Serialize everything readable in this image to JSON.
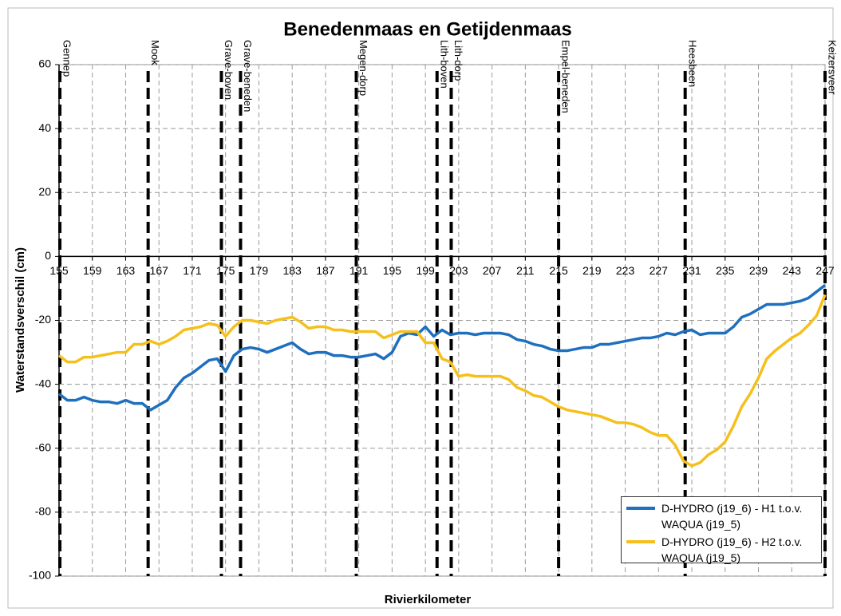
{
  "chart_data": {
    "type": "line",
    "title": "Benedenmaas en Getijdenmaas",
    "x_label": "Rivierkilometer",
    "y_label": "Waterstandsverschil (cm)",
    "xlim": [
      155,
      247
    ],
    "ylim": [
      -100,
      60
    ],
    "xticks": [
      155,
      159,
      163,
      167,
      171,
      175,
      179,
      183,
      187,
      191,
      195,
      199,
      203,
      207,
      211,
      215,
      219,
      223,
      227,
      231,
      235,
      239,
      243,
      247
    ],
    "yticks": [
      -100,
      -80,
      -60,
      -40,
      -20,
      0,
      20,
      40,
      60
    ],
    "grid": true,
    "legend": "bottom-right",
    "locations": [
      {
        "name": "Gennep",
        "x": 155.1
      },
      {
        "name": "Mook",
        "x": 165.7
      },
      {
        "name": "Grave-boven",
        "x": 174.5
      },
      {
        "name": "Grave-beneden",
        "x": 176.8
      },
      {
        "name": "Megen-dorp",
        "x": 190.7
      },
      {
        "name": "Lith-boven",
        "x": 200.4
      },
      {
        "name": "Lith-dorp",
        "x": 202.1
      },
      {
        "name": "Empel-beneden",
        "x": 215.0
      },
      {
        "name": "Heesbeen",
        "x": 230.2
      },
      {
        "name": "Keizersveer",
        "x": 247
      }
    ],
    "x": [
      155,
      156,
      157,
      158,
      159,
      160,
      161,
      162,
      163,
      164,
      165,
      166,
      167,
      168,
      169,
      170,
      171,
      172,
      173,
      174,
      175,
      176,
      177,
      178,
      179,
      180,
      181,
      182,
      183,
      184,
      185,
      186,
      187,
      188,
      189,
      190,
      191,
      192,
      193,
      194,
      195,
      196,
      197,
      198,
      199,
      200,
      201,
      202,
      203,
      204,
      205,
      206,
      207,
      208,
      209,
      210,
      211,
      212,
      213,
      214,
      215,
      216,
      217,
      218,
      219,
      220,
      221,
      222,
      223,
      224,
      225,
      226,
      227,
      228,
      229,
      230,
      231,
      232,
      233,
      234,
      235,
      236,
      237,
      238,
      239,
      240,
      241,
      242,
      243,
      244,
      245,
      246,
      247
    ],
    "series": [
      {
        "name": "D-HYDRO (j19_6) - H1 t.o.v. WAQUA (j19_5)",
        "color": "#1f6fbf",
        "values": [
          -43,
          -45,
          -45,
          -44,
          -45,
          -45.5,
          -45.5,
          -46,
          -45,
          -46,
          -46,
          -48,
          -46.5,
          -45,
          -41,
          -38,
          -36.5,
          -34.5,
          -32.5,
          -32,
          -36,
          -31,
          -29,
          -28.5,
          -29,
          -30,
          -29,
          -28,
          -27,
          -29,
          -30.5,
          -30,
          -30,
          -31,
          -31,
          -31.5,
          -31.5,
          -31,
          -30.5,
          -32,
          -30,
          -25,
          -24,
          -24.5,
          -22,
          -25,
          -23,
          -24.5,
          -24,
          -24,
          -24.5,
          -24,
          -24,
          -24,
          -24.5,
          -26,
          -26.5,
          -27.5,
          -28,
          -29,
          -29.5,
          -29.5,
          -29,
          -28.5,
          -28.5,
          -27.5,
          -27.5,
          -27,
          -26.5,
          -26,
          -25.5,
          -25.5,
          -25,
          -24,
          -24.5,
          -23.5,
          -23,
          -24.5,
          -24,
          -24,
          -24,
          -22,
          -19,
          -18,
          -16.5,
          -15,
          -15,
          -15,
          -14.5,
          -14,
          -13,
          -11,
          -9
        ]
      },
      {
        "name": "D-HYDRO (j19_6) - H2 t.o.v. WAQUA (j19_5)",
        "color": "#f5c01c",
        "values": [
          -31,
          -33,
          -33,
          -31.5,
          -31.5,
          -31,
          -30.5,
          -30,
          -30,
          -27.5,
          -27.5,
          -26.5,
          -27.5,
          -26.5,
          -25,
          -23,
          -22.5,
          -22,
          -21,
          -21.5,
          -25,
          -22,
          -20,
          -20,
          -20.5,
          -21,
          -20,
          -19.5,
          -19,
          -20.5,
          -22.5,
          -22,
          -22,
          -23,
          -23,
          -23.5,
          -23.5,
          -23.5,
          -23.5,
          -25.5,
          -24.5,
          -23.5,
          -23.5,
          -23.5,
          -27,
          -27,
          -32,
          -33,
          -37.5,
          -37,
          -37.5,
          -37.5,
          -37.5,
          -37.5,
          -38.5,
          -41,
          -42,
          -43.5,
          -44,
          -45.5,
          -47,
          -48,
          -48.5,
          -49,
          -49.5,
          -50,
          -51,
          -52,
          -52,
          -52.5,
          -53.5,
          -55,
          -56,
          -56,
          -59,
          -64,
          -65.5,
          -64.5,
          -62,
          -60.5,
          -58,
          -53,
          -47,
          -43,
          -38,
          -32,
          -29.5,
          -27.5,
          -25.5,
          -24,
          -21.5,
          -18.5,
          -12
        ]
      }
    ]
  }
}
